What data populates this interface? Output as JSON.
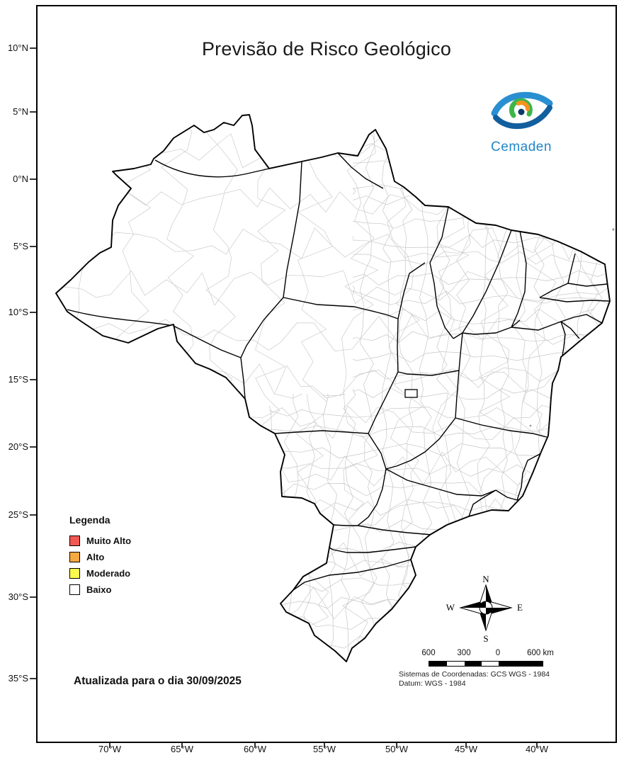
{
  "title": "Previsão de Risco Geológico",
  "logo": {
    "name": "Cemaden",
    "text_color": "#2486c8",
    "blue": "#2a8fd0",
    "dark_blue": "#135f9e",
    "green": "#3db54a",
    "orange": "#f7941e"
  },
  "axes": {
    "lat": [
      "10°N",
      "5°N",
      "0°N",
      "5°S",
      "10°S",
      "15°S",
      "20°S",
      "25°S",
      "30°S",
      "35°S"
    ],
    "lon": [
      "70°W",
      "65°W",
      "60°W",
      "55°W",
      "50°W",
      "45°W",
      "40°W"
    ]
  },
  "legend": {
    "title": "Legenda",
    "items": [
      {
        "label": "Muito Alto",
        "color": "#f25752"
      },
      {
        "label": "Alto",
        "color": "#f5a93f"
      },
      {
        "label": "Moderado",
        "color": "#fbfb4e"
      },
      {
        "label": "Baixo",
        "color": "#ffffff"
      }
    ]
  },
  "updated_text": "Atualizada para o dia 30/09/2025",
  "compass": {
    "n": "N",
    "s": "S",
    "e": "E",
    "w": "W"
  },
  "scalebar": {
    "labels": [
      "600",
      "300",
      "0",
      "600 km"
    ]
  },
  "crs": {
    "line1": "Sistemas de Coordenadas: GCS WGS - 1984",
    "line2": "Datum: WGS - 1984"
  }
}
